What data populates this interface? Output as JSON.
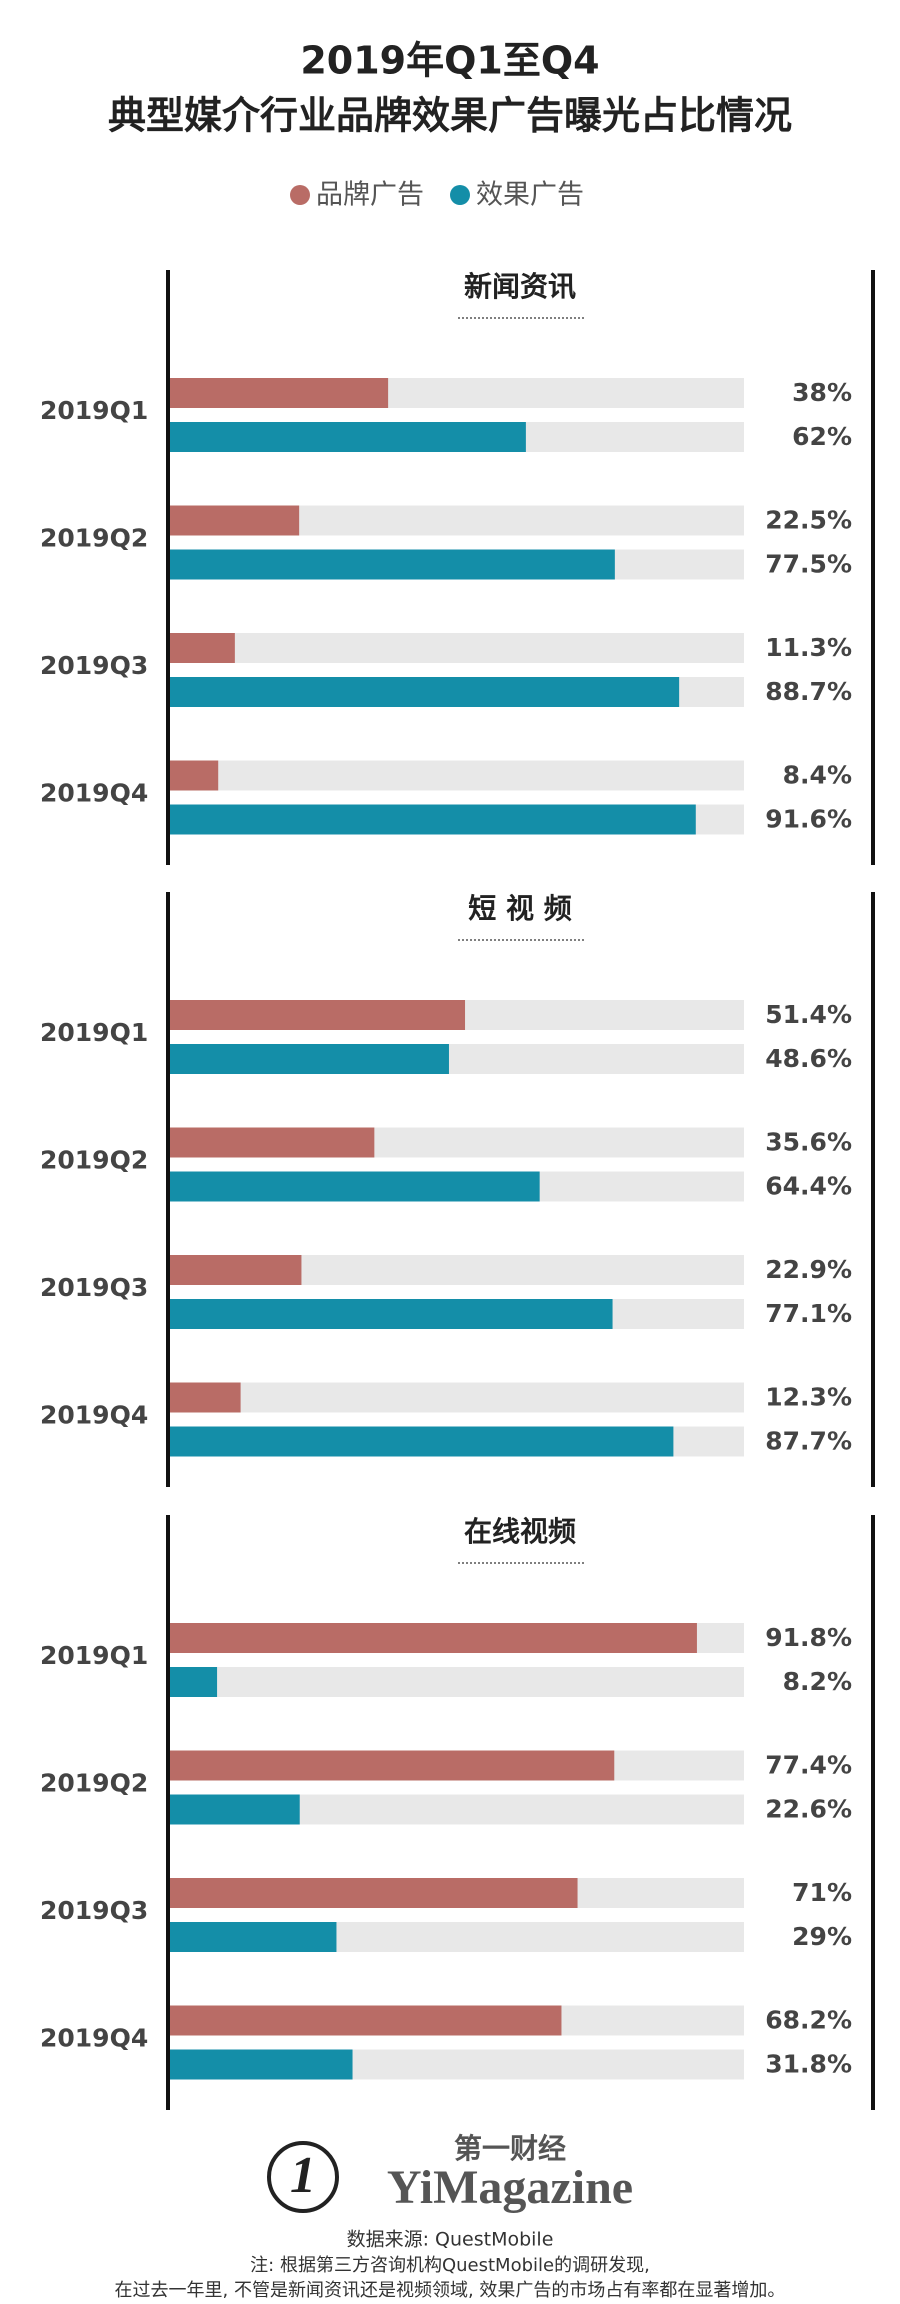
{
  "header": {
    "title": [
      "2019年Q1至Q4",
      "典型媒介行业品牌效果广告曝光占比情况"
    ]
  },
  "chart_data": [
    {
      "type": "bar",
      "orientation": "horizontal",
      "title": "新闻资讯",
      "categories": [
        "2019Q1",
        "2019Q2",
        "2019Q3",
        "2019Q4"
      ],
      "xlim": [
        0,
        100
      ],
      "series": [
        {
          "name": "品牌广告",
          "color": "#b96c66",
          "values": [
            38,
            22.5,
            11.3,
            8.4
          ],
          "value_labels": [
            "38%",
            "22.5%",
            "11.3%",
            "8.4%"
          ]
        },
        {
          "name": "效果广告",
          "color": "#148ea8",
          "values": [
            62,
            77.5,
            88.7,
            91.6
          ],
          "value_labels": [
            "62%",
            "77.5%",
            "88.7%",
            "91.6%"
          ]
        }
      ]
    },
    {
      "type": "bar",
      "orientation": "horizontal",
      "title": "短 视 频",
      "categories": [
        "2019Q1",
        "2019Q2",
        "2019Q3",
        "2019Q4"
      ],
      "xlim": [
        0,
        100
      ],
      "series": [
        {
          "name": "品牌广告",
          "color": "#b96c66",
          "values": [
            51.4,
            35.6,
            22.9,
            12.3
          ],
          "value_labels": [
            "51.4%",
            "35.6%",
            "22.9%",
            "12.3%"
          ]
        },
        {
          "name": "效果广告",
          "color": "#148ea8",
          "values": [
            48.6,
            64.4,
            77.1,
            87.7
          ],
          "value_labels": [
            "48.6%",
            "64.4%",
            "77.1%",
            "87.7%"
          ]
        }
      ]
    },
    {
      "type": "bar",
      "orientation": "horizontal",
      "title": "在线视频",
      "categories": [
        "2019Q1",
        "2019Q2",
        "2019Q3",
        "2019Q4"
      ],
      "xlim": [
        0,
        100
      ],
      "series": [
        {
          "name": "品牌广告",
          "color": "#b96c66",
          "values": [
            91.8,
            77.4,
            71,
            68.2
          ],
          "value_labels": [
            "91.8%",
            "77.4%",
            "71%",
            "68.2%"
          ]
        },
        {
          "name": "效果广告",
          "color": "#148ea8",
          "values": [
            8.2,
            22.6,
            29,
            31.8
          ],
          "value_labels": [
            "8.2%",
            "22.6%",
            "29%",
            "31.8%"
          ]
        }
      ]
    }
  ],
  "footer": {
    "logo_cn": "第一财经",
    "logo_en": "YiMagazine",
    "source": "数据来源: QuestMobile",
    "notes": [
      "注: 根据第三方咨询机构QuestMobile的调研发现,",
      "在过去一年里, 不管是新闻资讯还是视频领域, 效果广告的市场占有率都在显著增加。"
    ]
  }
}
